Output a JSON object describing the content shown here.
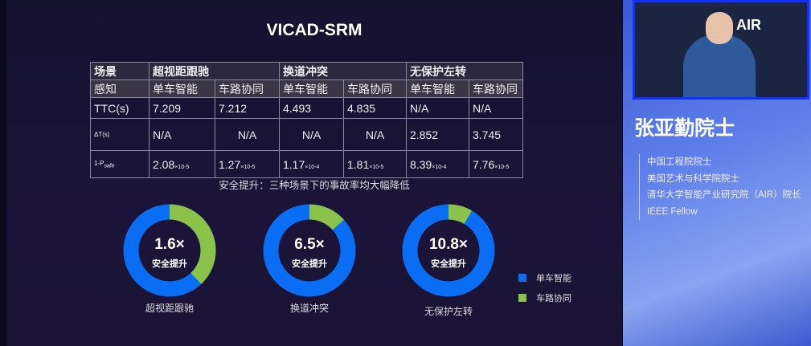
{
  "slide": {
    "title": "VICAD-SRM",
    "table": {
      "header": [
        "场景",
        "超视距跟驰",
        "换道冲突",
        "无保护左转"
      ],
      "sub": [
        "感知",
        "单车智能",
        "车路协同",
        "单车智能",
        "车路协同",
        "单车智能",
        "车路协同"
      ],
      "rows": [
        {
          "label": "TTC(s)",
          "cells": [
            "7.209",
            "7.212",
            "4.493",
            "4.835",
            "N/A",
            "N/A"
          ]
        },
        {
          "label": "ΔT(s)",
          "cells": [
            "N/A",
            "N/A",
            "N/A",
            "N/A",
            "2.852",
            "3.745"
          ]
        },
        {
          "label": "1-P",
          "label_sub": "safe",
          "cells": [
            "2.08",
            "1.27",
            "1.17",
            "1.81",
            "8.39",
            "7.76"
          ],
          "exps": [
            "×10-5",
            "×10-5",
            "×10-4",
            "×10-5",
            "×10-4",
            "×10-5"
          ]
        }
      ]
    },
    "caption": "安全提升：三种场景下的事故率均大幅降低",
    "chart_data": {
      "type": "pie",
      "colors": {
        "单车智能": "#0a6ef5",
        "车路协同": "#8bc34a"
      },
      "legend": [
        "单车智能",
        "车路协同"
      ],
      "legend_placement": "right",
      "charts": [
        {
          "label": "超视距跟驰",
          "center_value": "1.6×",
          "center_text": "安全提升",
          "values": [
            2.08e-05,
            1.27e-05
          ]
        },
        {
          "label": "换道冲突",
          "center_value": "6.5×",
          "center_text": "安全提升",
          "values": [
            0.000117,
            1.81e-05
          ]
        },
        {
          "label": "无保护左转",
          "center_value": "10.8×",
          "center_text": "安全提升",
          "values": [
            0.000839,
            7.76e-05
          ]
        }
      ]
    }
  },
  "speaker": {
    "name": "张亚勤院士",
    "logo": "AIR",
    "titles": [
      "中国工程院院士",
      "美国艺术与科学院院士",
      "清华大学智能产业研究院（AIR）院长",
      "IEEE Fellow"
    ]
  }
}
